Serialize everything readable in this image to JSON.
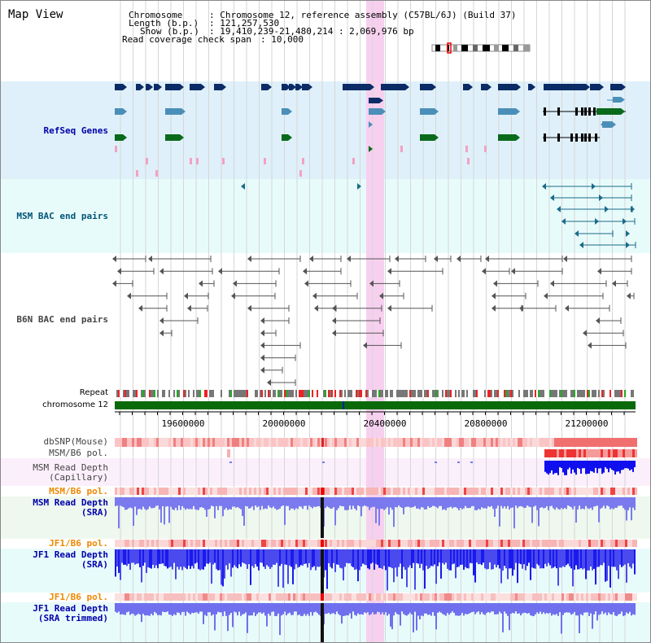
{
  "title": "Map View",
  "info": {
    "chromosome_key": "Chromosome",
    "chromosome_val": ": Chromosome 12, reference assembly (C57BL/6J) (Build 37)",
    "length_key": "Length (b.p.)",
    "length_val": ": 121,257,530",
    "show_key": "Show (b.p.)",
    "show_val": ": 19,410,239-21,480,214 : 2,069,976 bp",
    "coverage_key": "Read coverage check span",
    "coverage_val": ": 10,000"
  },
  "tracks": {
    "refseq": "RefSeq Genes",
    "msm_bac": "MSM BAC end pairs",
    "b6n_bac": "B6N BAC end pairs",
    "repeat": "Repeat",
    "chromosome": "chromosome 12",
    "dbsnp": "dbSNP(Mouse)",
    "msm_b6_pol_1": "MSM/B6 pol.",
    "msm_depth_cap_1": "MSM Read Depth",
    "msm_depth_cap_2": "(Capillary)",
    "msm_b6_pol_2": "MSM/B6 pol.",
    "msm_depth_sra_1": "MSM Read Depth",
    "msm_depth_sra_2": "(SRA)",
    "jf1_b6_pol_1": "JF1/B6 pol.",
    "jf1_depth_sra_1": "JF1 Read Depth",
    "jf1_depth_sra_2": "(SRA)",
    "jf1_b6_pol_2": "JF1/B6 pol.",
    "jf1_depth_trim_1": "JF1 Read Depth",
    "jf1_depth_trim_2": "(SRA trimmed)"
  },
  "axis_ticks": [
    "19600000",
    "20000000",
    "20400000",
    "20800000",
    "21200000"
  ],
  "colors": {
    "refseq_bg": "#dff0fa",
    "bac_bg": "#e8fbfb",
    "highlight": "#f7d0ef",
    "gene_dark": "#0b2b66",
    "gene_mid": "#4a8fb8",
    "gene_green": "#0a6a1c",
    "gene_pink": "#f2a2c2",
    "msm_bac": "#1a6a8a",
    "b6n_bac": "#555555",
    "chromosome_bar": "#0a6a0a",
    "depth_blue": "#1010ee",
    "pol_red": "#ee3333"
  }
}
